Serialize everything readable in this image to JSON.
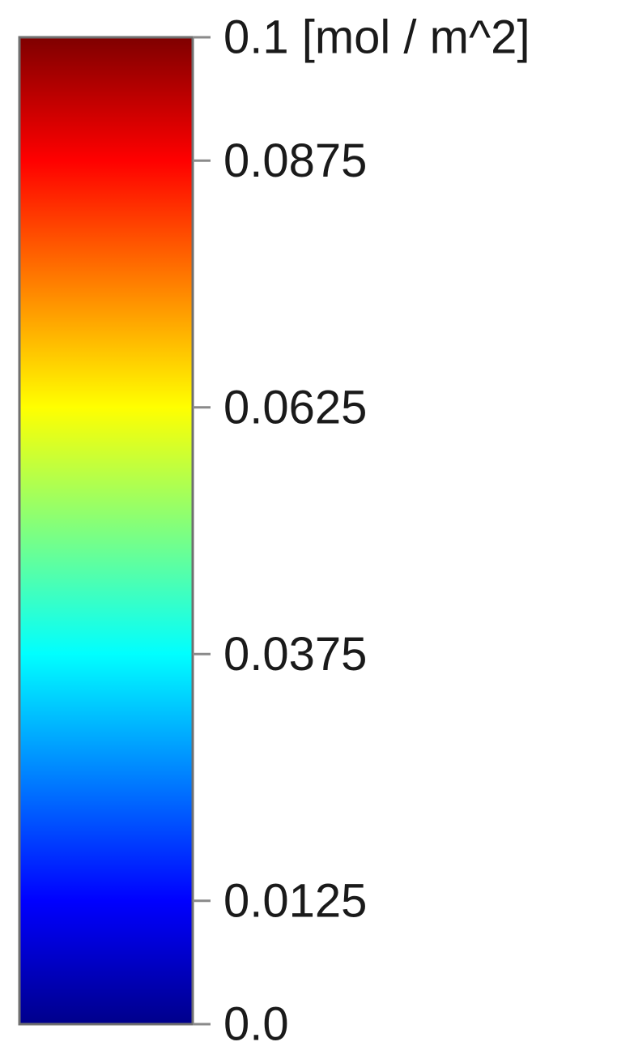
{
  "chart_data": {
    "type": "heatmap",
    "title": "",
    "orientation": "vertical",
    "colormap": "jet",
    "range": [
      0.0,
      0.1
    ],
    "ticks": [
      {
        "value": 0.1,
        "label": "0.1 [mol / m^2]"
      },
      {
        "value": 0.0875,
        "label": "0.0875"
      },
      {
        "value": 0.0625,
        "label": "0.0625"
      },
      {
        "value": 0.0375,
        "label": "0.0375"
      },
      {
        "value": 0.0125,
        "label": "0.0125"
      },
      {
        "value": 0.0,
        "label": "0.0"
      }
    ],
    "color_stops": [
      {
        "value": 0.0,
        "color": "#00008b"
      },
      {
        "value": 0.0125,
        "color": "#0000ff"
      },
      {
        "value": 0.0375,
        "color": "#00ffff"
      },
      {
        "value": 0.05,
        "color": "#7fff7f"
      },
      {
        "value": 0.0625,
        "color": "#ffff00"
      },
      {
        "value": 0.0875,
        "color": "#ff0000"
      },
      {
        "value": 0.1,
        "color": "#7f0000"
      }
    ]
  }
}
